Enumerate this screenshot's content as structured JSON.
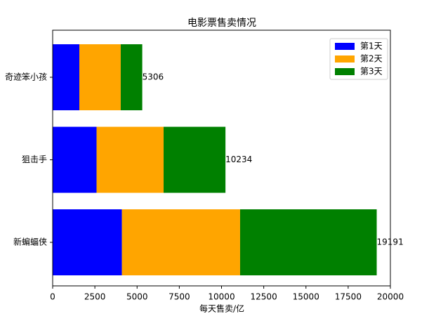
{
  "chart_data": {
    "type": "stacked-barh",
    "title": "电影票售卖情况",
    "x_label": "每天售卖/亿",
    "categories": [
      "新蝙蝠侠",
      "狙击手",
      "奇迹笨小孩"
    ],
    "series": [
      {
        "name": "第1天",
        "color": "#0000ff",
        "values": [
          4100,
          2600,
          1580
        ]
      },
      {
        "name": "第2天",
        "color": "#ffa500",
        "values": [
          7000,
          3970,
          2450
        ]
      },
      {
        "name": "第3天",
        "color": "#008000",
        "values": [
          8091,
          3664,
          1276
        ]
      }
    ],
    "totals": [
      19191,
      10234,
      5306
    ],
    "xlim": [
      0,
      20000
    ],
    "xticks": [
      0,
      2500,
      5000,
      7500,
      10000,
      12500,
      15000,
      17500,
      20000
    ],
    "legend": "upper right"
  }
}
